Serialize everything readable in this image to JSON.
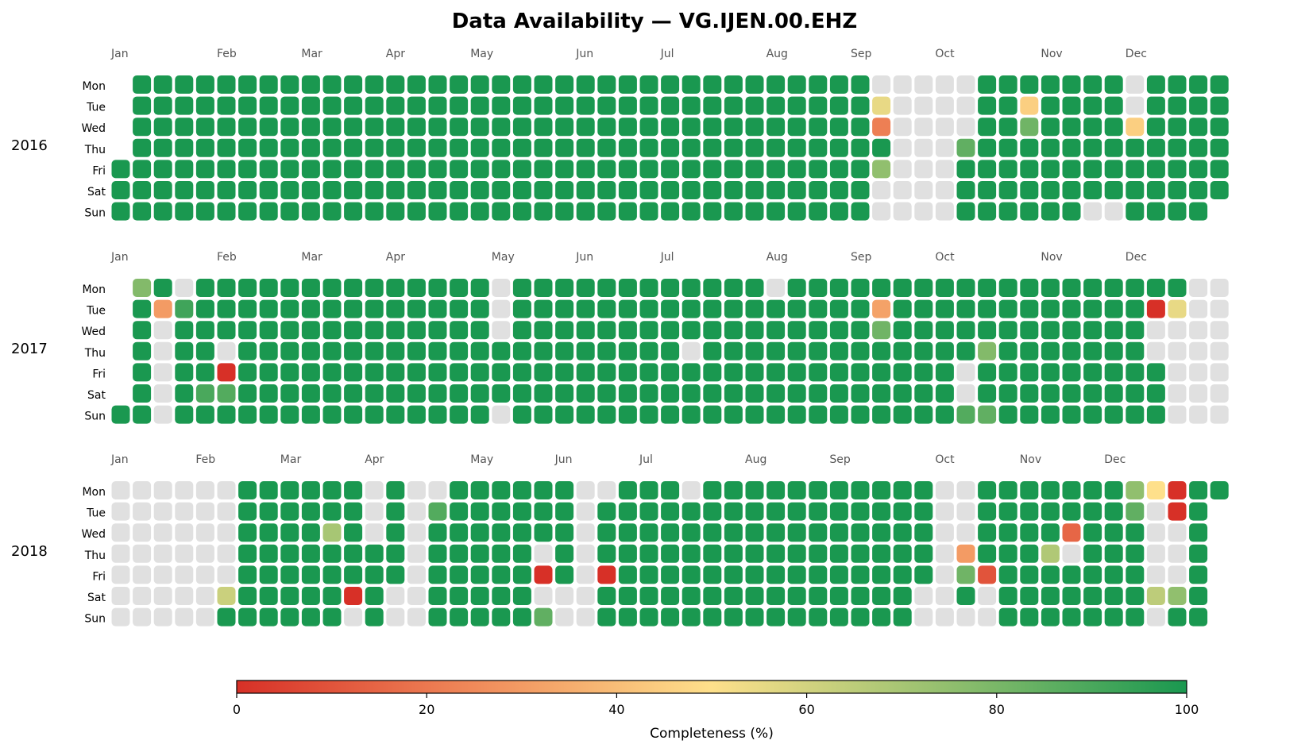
{
  "chart_data": {
    "type": "heatmap",
    "title": "Data Availability — VG.IJEN.00.EHZ",
    "day_labels": [
      "Mon",
      "Tue",
      "Wed",
      "Thu",
      "Fri",
      "Sat",
      "Sun"
    ],
    "month_labels": [
      "Jan",
      "Feb",
      "Mar",
      "Apr",
      "May",
      "Jun",
      "Jul",
      "Aug",
      "Sep",
      "Oct",
      "Nov",
      "Dec"
    ],
    "missing_color": "#e0e0e0",
    "colorbar": {
      "label": "Completeness (%)",
      "min": 0,
      "max": 100,
      "ticks": [
        0,
        20,
        40,
        60,
        80,
        100
      ],
      "colors": [
        "#d73027",
        "#f08a5a",
        "#fee08b",
        "#91bf6e",
        "#1a9850"
      ]
    },
    "years": [
      {
        "year": "2016",
        "exceptions": [
          {
            "date": "2016-09-05",
            "value": null
          },
          {
            "date": "2016-09-06",
            "value": 55
          },
          {
            "date": "2016-09-07",
            "value": 22
          },
          {
            "date": "2016-09-08",
            "value": 100
          },
          {
            "date": "2016-09-09",
            "value": 75
          },
          {
            "date": "2016-09-10",
            "value": null
          },
          {
            "date": "2016-09-11",
            "value": null
          },
          {
            "date": "2016-09-12",
            "value": null
          },
          {
            "date": "2016-09-13",
            "value": null
          },
          {
            "date": "2016-09-14",
            "value": null
          },
          {
            "date": "2016-09-15",
            "value": null
          },
          {
            "date": "2016-09-16",
            "value": null
          },
          {
            "date": "2016-09-17",
            "value": null
          },
          {
            "date": "2016-09-18",
            "value": null
          },
          {
            "date": "2016-09-19",
            "value": null
          },
          {
            "date": "2016-09-20",
            "value": null
          },
          {
            "date": "2016-09-21",
            "value": null
          },
          {
            "date": "2016-09-22",
            "value": null
          },
          {
            "date": "2016-09-23",
            "value": null
          },
          {
            "date": "2016-09-24",
            "value": null
          },
          {
            "date": "2016-09-25",
            "value": null
          },
          {
            "date": "2016-09-26",
            "value": null
          },
          {
            "date": "2016-09-27",
            "value": null
          },
          {
            "date": "2016-09-28",
            "value": null
          },
          {
            "date": "2016-09-29",
            "value": null
          },
          {
            "date": "2016-09-30",
            "value": null
          },
          {
            "date": "2016-10-01",
            "value": null
          },
          {
            "date": "2016-10-02",
            "value": null
          },
          {
            "date": "2016-10-03",
            "value": null
          },
          {
            "date": "2016-10-04",
            "value": null
          },
          {
            "date": "2016-10-05",
            "value": null
          },
          {
            "date": "2016-10-06",
            "value": 85
          },
          {
            "date": "2016-10-25",
            "value": 45
          },
          {
            "date": "2016-10-26",
            "value": 82
          },
          {
            "date": "2016-11-20",
            "value": null
          },
          {
            "date": "2016-11-27",
            "value": null
          },
          {
            "date": "2016-11-28",
            "value": null
          },
          {
            "date": "2016-11-29",
            "value": null
          },
          {
            "date": "2016-11-30",
            "value": 45
          }
        ]
      },
      {
        "year": "2017",
        "exceptions": [
          {
            "date": "2017-01-02",
            "value": 78
          },
          {
            "date": "2017-01-03",
            "value": 100
          },
          {
            "date": "2017-01-10",
            "value": 30
          },
          {
            "date": "2017-01-11",
            "value": null
          },
          {
            "date": "2017-01-12",
            "value": null
          },
          {
            "date": "2017-01-13",
            "value": null
          },
          {
            "date": "2017-01-14",
            "value": null
          },
          {
            "date": "2017-01-15",
            "value": null
          },
          {
            "date": "2017-01-16",
            "value": null
          },
          {
            "date": "2017-01-17",
            "value": 92
          },
          {
            "date": "2017-01-28",
            "value": 90
          },
          {
            "date": "2017-02-02",
            "value": null
          },
          {
            "date": "2017-02-03",
            "value": 0
          },
          {
            "date": "2017-02-04",
            "value": 88
          },
          {
            "date": "2017-05-01",
            "value": null
          },
          {
            "date": "2017-05-02",
            "value": null
          },
          {
            "date": "2017-05-03",
            "value": null
          },
          {
            "date": "2017-05-07",
            "value": null
          },
          {
            "date": "2017-07-06",
            "value": null
          },
          {
            "date": "2017-07-31",
            "value": null
          },
          {
            "date": "2017-09-05",
            "value": 32
          },
          {
            "date": "2017-09-06",
            "value": 82
          },
          {
            "date": "2017-10-06",
            "value": null
          },
          {
            "date": "2017-10-07",
            "value": null
          },
          {
            "date": "2017-10-08",
            "value": 88
          },
          {
            "date": "2017-10-12",
            "value": 78
          },
          {
            "date": "2017-10-15",
            "value": 85
          },
          {
            "date": "2017-12-05",
            "value": 0
          },
          {
            "date": "2017-12-06",
            "value": null
          },
          {
            "date": "2017-12-07",
            "value": null
          },
          {
            "date": "2017-12-12",
            "value": 55
          },
          {
            "date": "2017-12-13",
            "value": null
          },
          {
            "date": "2017-12-14",
            "value": null
          },
          {
            "date": "2017-12-15",
            "value": null
          },
          {
            "date": "2017-12-16",
            "value": null
          },
          {
            "date": "2017-12-17",
            "value": null
          },
          {
            "date": "2017-12-18",
            "value": null
          },
          {
            "date": "2017-12-19",
            "value": null
          },
          {
            "date": "2017-12-20",
            "value": null
          },
          {
            "date": "2017-12-21",
            "value": null
          },
          {
            "date": "2017-12-22",
            "value": null
          },
          {
            "date": "2017-12-23",
            "value": null
          },
          {
            "date": "2017-12-24",
            "value": null
          },
          {
            "date": "2017-12-25",
            "value": null
          },
          {
            "date": "2017-12-26",
            "value": null
          },
          {
            "date": "2017-12-27",
            "value": null
          },
          {
            "date": "2017-12-28",
            "value": null
          },
          {
            "date": "2017-12-29",
            "value": null
          },
          {
            "date": "2017-12-30",
            "value": null
          },
          {
            "date": "2017-12-31",
            "value": null
          }
        ]
      },
      {
        "year": "2018",
        "exceptions": [
          {
            "date": "2018-01-01",
            "value": null
          },
          {
            "date": "2018-01-02",
            "value": null
          },
          {
            "date": "2018-01-03",
            "value": null
          },
          {
            "date": "2018-01-04",
            "value": null
          },
          {
            "date": "2018-01-05",
            "value": null
          },
          {
            "date": "2018-01-06",
            "value": null
          },
          {
            "date": "2018-01-07",
            "value": null
          },
          {
            "date": "2018-01-08",
            "value": null
          },
          {
            "date": "2018-01-09",
            "value": null
          },
          {
            "date": "2018-01-10",
            "value": null
          },
          {
            "date": "2018-01-11",
            "value": null
          },
          {
            "date": "2018-01-12",
            "value": null
          },
          {
            "date": "2018-01-13",
            "value": null
          },
          {
            "date": "2018-01-14",
            "value": null
          },
          {
            "date": "2018-01-15",
            "value": null
          },
          {
            "date": "2018-01-16",
            "value": null
          },
          {
            "date": "2018-01-17",
            "value": null
          },
          {
            "date": "2018-01-18",
            "value": null
          },
          {
            "date": "2018-01-19",
            "value": null
          },
          {
            "date": "2018-01-20",
            "value": null
          },
          {
            "date": "2018-01-21",
            "value": null
          },
          {
            "date": "2018-01-22",
            "value": null
          },
          {
            "date": "2018-01-23",
            "value": null
          },
          {
            "date": "2018-01-24",
            "value": null
          },
          {
            "date": "2018-01-25",
            "value": null
          },
          {
            "date": "2018-01-26",
            "value": null
          },
          {
            "date": "2018-01-27",
            "value": null
          },
          {
            "date": "2018-01-28",
            "value": null
          },
          {
            "date": "2018-01-29",
            "value": null
          },
          {
            "date": "2018-01-30",
            "value": null
          },
          {
            "date": "2018-01-31",
            "value": null
          },
          {
            "date": "2018-02-01",
            "value": null
          },
          {
            "date": "2018-02-02",
            "value": null
          },
          {
            "date": "2018-02-03",
            "value": null
          },
          {
            "date": "2018-02-04",
            "value": null
          },
          {
            "date": "2018-02-05",
            "value": null
          },
          {
            "date": "2018-02-06",
            "value": null
          },
          {
            "date": "2018-02-07",
            "value": null
          },
          {
            "date": "2018-02-08",
            "value": null
          },
          {
            "date": "2018-02-09",
            "value": null
          },
          {
            "date": "2018-02-10",
            "value": 62
          },
          {
            "date": "2018-03-14",
            "value": 70
          },
          {
            "date": "2018-03-24",
            "value": 0
          },
          {
            "date": "2018-03-25",
            "value": null
          },
          {
            "date": "2018-03-26",
            "value": null
          },
          {
            "date": "2018-03-27",
            "value": null
          },
          {
            "date": "2018-03-28",
            "value": null
          },
          {
            "date": "2018-04-07",
            "value": null
          },
          {
            "date": "2018-04-08",
            "value": null
          },
          {
            "date": "2018-04-09",
            "value": null
          },
          {
            "date": "2018-04-10",
            "value": null
          },
          {
            "date": "2018-04-11",
            "value": null
          },
          {
            "date": "2018-04-12",
            "value": null
          },
          {
            "date": "2018-04-13",
            "value": null
          },
          {
            "date": "2018-04-14",
            "value": null
          },
          {
            "date": "2018-04-15",
            "value": null
          },
          {
            "date": "2018-04-16",
            "value": null
          },
          {
            "date": "2018-04-17",
            "value": 88
          },
          {
            "date": "2018-05-24",
            "value": null
          },
          {
            "date": "2018-05-25",
            "value": 0
          },
          {
            "date": "2018-05-26",
            "value": null
          },
          {
            "date": "2018-05-27",
            "value": 85
          },
          {
            "date": "2018-06-02",
            "value": null
          },
          {
            "date": "2018-06-03",
            "value": null
          },
          {
            "date": "2018-06-04",
            "value": null
          },
          {
            "date": "2018-06-05",
            "value": null
          },
          {
            "date": "2018-06-06",
            "value": null
          },
          {
            "date": "2018-06-07",
            "value": null
          },
          {
            "date": "2018-06-08",
            "value": null
          },
          {
            "date": "2018-06-09",
            "value": null
          },
          {
            "date": "2018-06-10",
            "value": null
          },
          {
            "date": "2018-06-11",
            "value": null
          },
          {
            "date": "2018-06-15",
            "value": 0
          },
          {
            "date": "2018-07-09",
            "value": null
          },
          {
            "date": "2018-09-29",
            "value": null
          },
          {
            "date": "2018-09-30",
            "value": null
          },
          {
            "date": "2018-10-01",
            "value": null
          },
          {
            "date": "2018-10-02",
            "value": null
          },
          {
            "date": "2018-10-03",
            "value": null
          },
          {
            "date": "2018-10-04",
            "value": null
          },
          {
            "date": "2018-10-05",
            "value": null
          },
          {
            "date": "2018-10-06",
            "value": null
          },
          {
            "date": "2018-10-07",
            "value": null
          },
          {
            "date": "2018-10-08",
            "value": null
          },
          {
            "date": "2018-10-09",
            "value": null
          },
          {
            "date": "2018-10-10",
            "value": null
          },
          {
            "date": "2018-10-11",
            "value": 30
          },
          {
            "date": "2018-10-12",
            "value": 82
          },
          {
            "date": "2018-10-13",
            "value": 100
          },
          {
            "date": "2018-10-14",
            "value": null
          },
          {
            "date": "2018-10-19",
            "value": 10
          },
          {
            "date": "2018-10-20",
            "value": null
          },
          {
            "date": "2018-10-21",
            "value": null
          },
          {
            "date": "2018-11-08",
            "value": 68
          },
          {
            "date": "2018-11-14",
            "value": 15
          },
          {
            "date": "2018-11-15",
            "value": null
          },
          {
            "date": "2018-12-03",
            "value": 75
          },
          {
            "date": "2018-12-04",
            "value": 85
          },
          {
            "date": "2018-12-10",
            "value": 50
          },
          {
            "date": "2018-12-11",
            "value": null
          },
          {
            "date": "2018-12-12",
            "value": null
          },
          {
            "date": "2018-12-13",
            "value": null
          },
          {
            "date": "2018-12-14",
            "value": null
          },
          {
            "date": "2018-12-15",
            "value": 65
          },
          {
            "date": "2018-12-16",
            "value": null
          },
          {
            "date": "2018-12-17",
            "value": 0
          },
          {
            "date": "2018-12-18",
            "value": 0
          },
          {
            "date": "2018-12-19",
            "value": null
          },
          {
            "date": "2018-12-20",
            "value": null
          },
          {
            "date": "2018-12-21",
            "value": null
          },
          {
            "date": "2018-12-22",
            "value": 75
          },
          {
            "date": "2018-12-23",
            "value": 100
          },
          {
            "date": "2018-12-24",
            "value": 100
          }
        ]
      }
    ]
  }
}
